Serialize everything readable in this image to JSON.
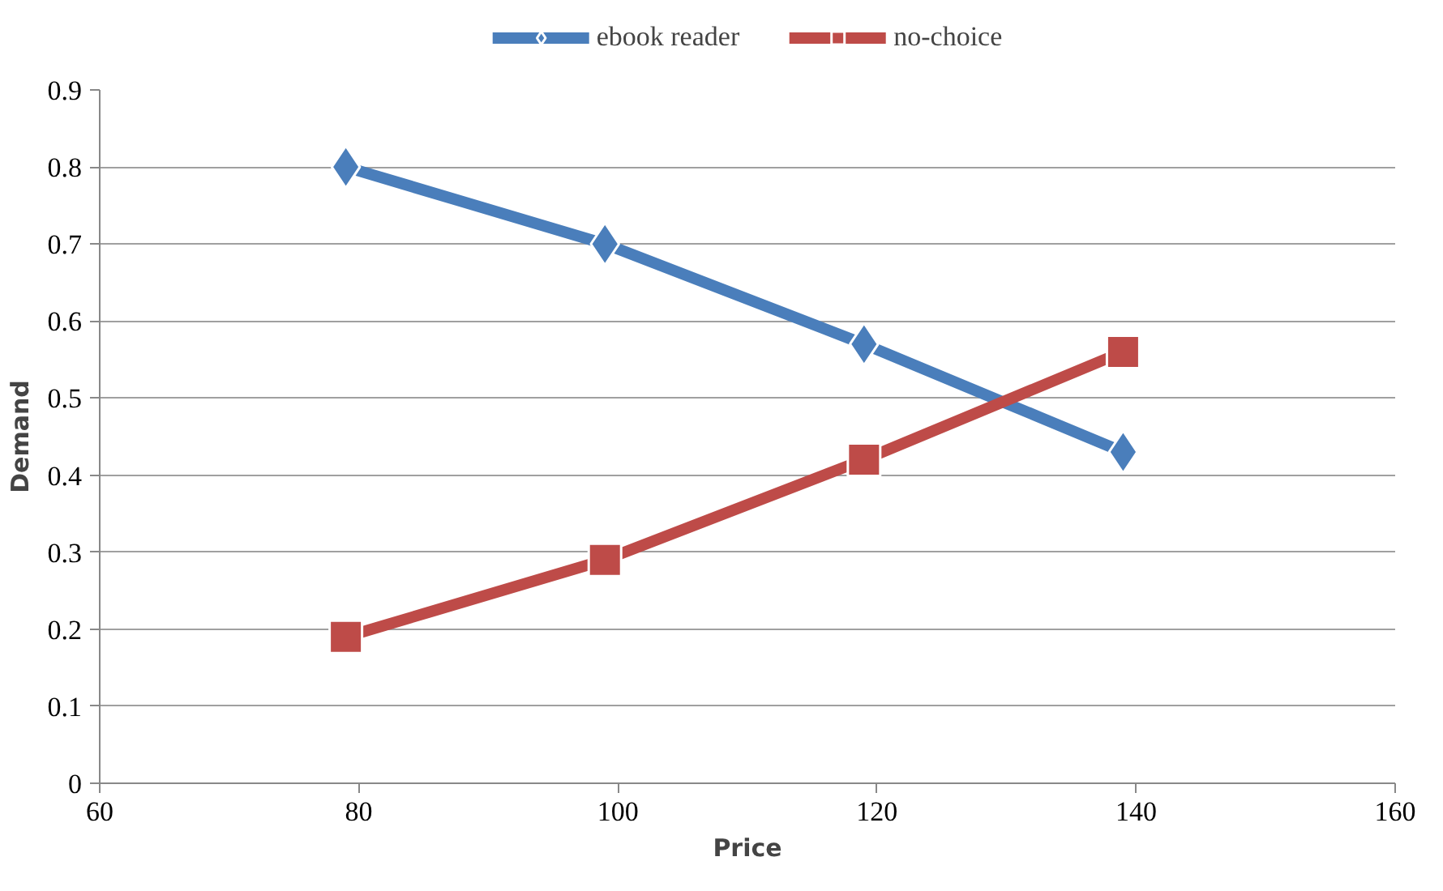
{
  "chart_data": {
    "type": "line",
    "xlabel": "Price",
    "ylabel": "Demand",
    "x": [
      79,
      99,
      119,
      139
    ],
    "series": [
      {
        "name": "ebook reader",
        "color": "#4a7ebb",
        "values": [
          0.8,
          0.7,
          0.57,
          0.43
        ],
        "marker": "diamond"
      },
      {
        "name": "no-choice",
        "color": "#be4b48",
        "values": [
          0.19,
          0.29,
          0.42,
          0.56
        ],
        "marker": "square"
      }
    ],
    "xlim": [
      60,
      160
    ],
    "xticks": [
      60,
      80,
      100,
      120,
      140,
      160
    ],
    "ylim": [
      0,
      0.9
    ],
    "yticks": [
      0,
      0.1,
      0.2,
      0.3,
      0.4,
      0.5,
      0.6,
      0.7,
      0.8,
      0.9
    ],
    "grid": "y",
    "legend": "top",
    "line_style": "solid"
  }
}
